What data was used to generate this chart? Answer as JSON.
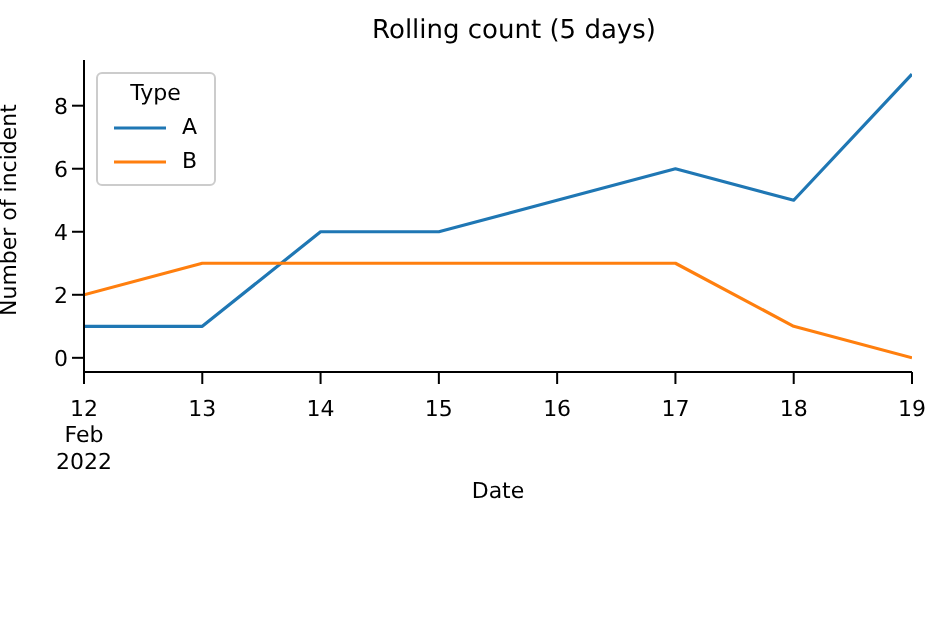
{
  "chart_data": {
    "type": "line",
    "title": "Rolling count (5 days)",
    "xlabel": "Date",
    "ylabel": "Number of incident",
    "legend_title": "Type",
    "x": [
      "2022-02-12",
      "2022-02-13",
      "2022-02-14",
      "2022-02-15",
      "2022-02-16",
      "2022-02-17",
      "2022-02-18",
      "2022-02-19"
    ],
    "series": [
      {
        "name": "A",
        "color": "#1f77b4",
        "values": [
          1,
          1,
          4,
          4,
          5,
          6,
          5,
          9
        ]
      },
      {
        "name": "B",
        "color": "#ff7f0e",
        "values": [
          2,
          3,
          3,
          3,
          3,
          3,
          1,
          0
        ]
      }
    ],
    "xlim": [
      "2022-02-12",
      "2022-02-19"
    ],
    "xticks": [
      {
        "value": "2022-02-12",
        "label": "12\nFeb\n2022"
      },
      {
        "value": "2022-02-13",
        "label": "13"
      },
      {
        "value": "2022-02-14",
        "label": "14"
      },
      {
        "value": "2022-02-15",
        "label": "15"
      },
      {
        "value": "2022-02-16",
        "label": "16"
      },
      {
        "value": "2022-02-17",
        "label": "17"
      },
      {
        "value": "2022-02-18",
        "label": "18"
      },
      {
        "value": "2022-02-19",
        "label": "19"
      }
    ],
    "ylim": [
      -0.45,
      9.45
    ],
    "yticks": [
      0,
      2,
      4,
      6,
      8
    ],
    "grid": false,
    "legend": "top left",
    "marker": "none",
    "line_style": "solid"
  }
}
